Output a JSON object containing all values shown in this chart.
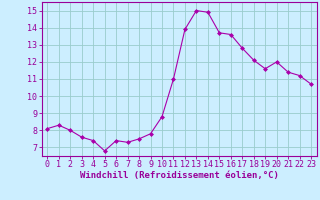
{
  "x": [
    0,
    1,
    2,
    3,
    4,
    5,
    6,
    7,
    8,
    9,
    10,
    11,
    12,
    13,
    14,
    15,
    16,
    17,
    18,
    19,
    20,
    21,
    22,
    23
  ],
  "y": [
    8.1,
    8.3,
    8.0,
    7.6,
    7.4,
    6.8,
    7.4,
    7.3,
    7.5,
    7.8,
    8.8,
    11.0,
    13.9,
    15.0,
    14.9,
    13.7,
    13.6,
    12.8,
    12.1,
    11.6,
    12.0,
    11.4,
    11.2,
    10.7
  ],
  "line_color": "#aa00aa",
  "marker": "D",
  "marker_size": 2,
  "bg_color": "#cceeff",
  "grid_color": "#99cccc",
  "xlabel": "Windchill (Refroidissement éolien,°C)",
  "ylim": [
    6.5,
    15.5
  ],
  "xlim": [
    -0.5,
    23.5
  ],
  "yticks": [
    7,
    8,
    9,
    10,
    11,
    12,
    13,
    14,
    15
  ],
  "xticks": [
    0,
    1,
    2,
    3,
    4,
    5,
    6,
    7,
    8,
    9,
    10,
    11,
    12,
    13,
    14,
    15,
    16,
    17,
    18,
    19,
    20,
    21,
    22,
    23
  ],
  "tick_color": "#990099",
  "xlabel_color": "#990099",
  "xlabel_fontsize": 6.5,
  "tick_fontsize": 6,
  "spine_color": "#990099"
}
